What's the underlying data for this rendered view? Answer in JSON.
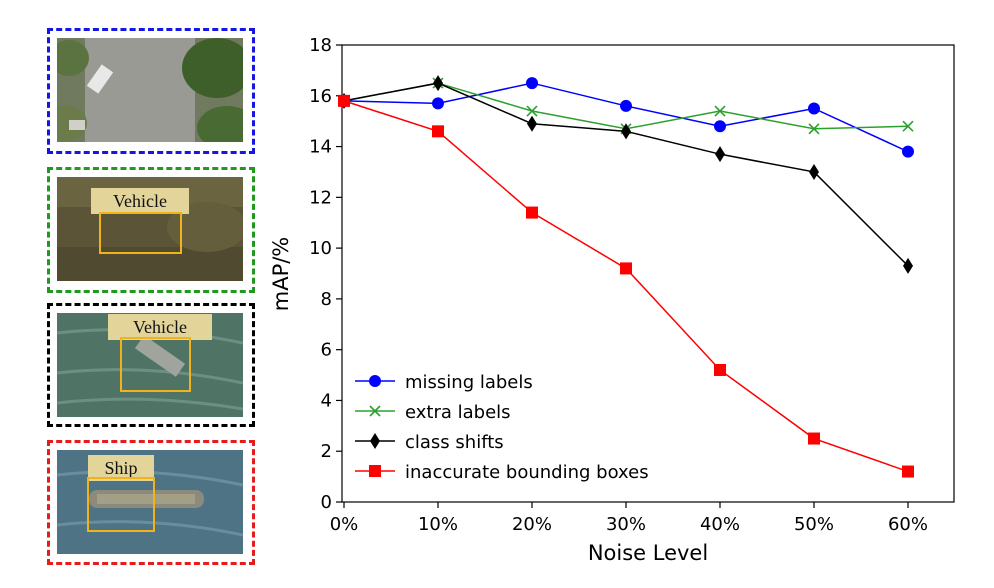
{
  "panels": [
    {
      "border_color": "#1515e6",
      "label": ""
    },
    {
      "border_color": "#1f9a1f",
      "label": "Vehicle"
    },
    {
      "border_color": "#000000",
      "label": "Vehicle"
    },
    {
      "border_color": "#e61c1c",
      "label": "Ship"
    }
  ],
  "chart_data": {
    "type": "line",
    "xlabel": "Noise Level",
    "ylabel": "mAP/%",
    "categories": [
      "0%",
      "10%",
      "20%",
      "30%",
      "40%",
      "50%",
      "60%"
    ],
    "ylim": [
      0,
      18
    ],
    "yticks": [
      "0",
      "2",
      "4",
      "6",
      "8",
      "10",
      "12",
      "14",
      "16",
      "18"
    ],
    "legend_position": "lower-left",
    "grid": false,
    "series": [
      {
        "name": "missing labels",
        "color": "#0000ff",
        "marker": "circle",
        "values": [
          15.8,
          15.7,
          16.5,
          15.6,
          14.8,
          15.5,
          13.8
        ]
      },
      {
        "name": "extra labels",
        "color": "#2ca02c",
        "marker": "x",
        "values": [
          15.8,
          16.5,
          15.4,
          14.7,
          15.4,
          14.7,
          14.8
        ]
      },
      {
        "name": "class shifts",
        "color": "#000000",
        "marker": "diamond",
        "values": [
          15.8,
          16.5,
          14.9,
          14.6,
          13.7,
          13.0,
          9.3
        ]
      },
      {
        "name": "inaccurate bounding boxes",
        "color": "#ff0000",
        "marker": "square",
        "values": [
          15.8,
          14.6,
          11.4,
          9.2,
          5.2,
          2.5,
          1.2
        ]
      }
    ]
  }
}
